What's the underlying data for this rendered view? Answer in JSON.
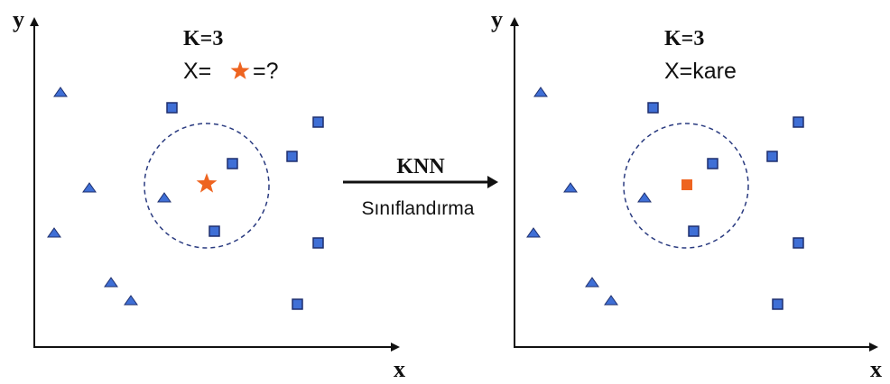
{
  "colors": {
    "axis": "#111111",
    "triangle": "#3f6fd6",
    "square": "#3f6fd6",
    "mark_outline": "#1e2f6e",
    "highlight": "#ee6420",
    "circle": "#2a3b80",
    "arrow": "#111111"
  },
  "left_panel": {
    "y_label": "y",
    "x_label": "x",
    "k_label": "K=3",
    "query_prefix": "X=",
    "query_icon": "star-icon",
    "query_suffix": "=?"
  },
  "right_panel": {
    "y_label": "y",
    "x_label": "x",
    "k_label": "K=3",
    "result_text": "X=kare"
  },
  "arrow": {
    "top_label": "KNN",
    "bottom_label": "Sınıflandırma"
  }
}
